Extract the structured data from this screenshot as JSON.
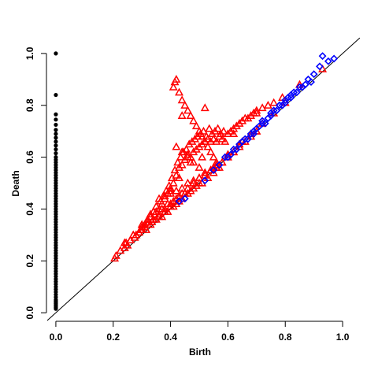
{
  "chart_data": {
    "type": "scatter",
    "title": "",
    "xlabel": "Birth",
    "ylabel": "Death",
    "xlim": [
      -0.03,
      1.03
    ],
    "ylim": [
      -0.03,
      1.03
    ],
    "xticks": [
      "0.0",
      "0.2",
      "0.4",
      "0.6",
      "0.8",
      "1.0"
    ],
    "yticks": [
      "0.0",
      "0.2",
      "0.4",
      "0.6",
      "0.8",
      "1.0"
    ],
    "grid": false,
    "legend": "none",
    "reference_line": {
      "from": [
        -0.03,
        -0.03
      ],
      "to": [
        1.06,
        1.06
      ]
    },
    "series": [
      {
        "marker": "filled-circle",
        "color": "#000000",
        "x": [
          0,
          0,
          0,
          0,
          0,
          0,
          0,
          0,
          0,
          0,
          0,
          0,
          0,
          0,
          0,
          0,
          0,
          0,
          0,
          0,
          0,
          0,
          0,
          0,
          0,
          0,
          0,
          0,
          0,
          0,
          0,
          0,
          0,
          0,
          0,
          0,
          0,
          0,
          0,
          0,
          0,
          0,
          0,
          0,
          0,
          0,
          0,
          0,
          0,
          0,
          0,
          0,
          0,
          0,
          0,
          0,
          0,
          0,
          0,
          0,
          0,
          0,
          0,
          0,
          0,
          0,
          0,
          0,
          0,
          0,
          0,
          0,
          0,
          0,
          0
        ],
        "y": [
          1.0,
          0.84,
          0.765,
          0.745,
          0.725,
          0.705,
          0.69,
          0.675,
          0.66,
          0.645,
          0.63,
          0.615,
          0.6,
          0.59,
          0.58,
          0.57,
          0.56,
          0.55,
          0.54,
          0.53,
          0.52,
          0.51,
          0.5,
          0.49,
          0.48,
          0.47,
          0.46,
          0.45,
          0.44,
          0.43,
          0.42,
          0.41,
          0.4,
          0.39,
          0.38,
          0.37,
          0.36,
          0.35,
          0.34,
          0.33,
          0.32,
          0.31,
          0.3,
          0.29,
          0.28,
          0.27,
          0.26,
          0.25,
          0.24,
          0.23,
          0.22,
          0.21,
          0.2,
          0.19,
          0.18,
          0.17,
          0.16,
          0.15,
          0.14,
          0.13,
          0.12,
          0.11,
          0.1,
          0.09,
          0.08,
          0.07,
          0.06,
          0.05,
          0.045,
          0.04,
          0.035,
          0.03,
          0.025,
          0.02,
          0.015
        ]
      },
      {
        "marker": "open-triangle",
        "color": "#ff0000",
        "x": [
          0.205,
          0.225,
          0.24,
          0.245,
          0.26,
          0.27,
          0.275,
          0.29,
          0.295,
          0.3,
          0.31,
          0.315,
          0.32,
          0.33,
          0.335,
          0.34,
          0.345,
          0.35,
          0.36,
          0.365,
          0.37,
          0.375,
          0.38,
          0.385,
          0.39,
          0.395,
          0.4,
          0.405,
          0.41,
          0.415,
          0.42,
          0.425,
          0.43,
          0.435,
          0.44,
          0.445,
          0.45,
          0.455,
          0.46,
          0.465,
          0.47,
          0.475,
          0.48,
          0.485,
          0.49,
          0.495,
          0.5,
          0.505,
          0.51,
          0.515,
          0.52,
          0.525,
          0.53,
          0.535,
          0.54,
          0.545,
          0.55,
          0.555,
          0.56,
          0.565,
          0.57,
          0.575,
          0.58,
          0.585,
          0.59,
          0.6,
          0.61,
          0.62,
          0.63,
          0.64,
          0.65,
          0.66,
          0.67,
          0.68,
          0.69,
          0.7,
          0.72,
          0.74,
          0.76,
          0.79,
          0.41,
          0.415,
          0.42,
          0.43,
          0.44,
          0.45,
          0.46,
          0.47,
          0.48,
          0.49,
          0.5,
          0.51,
          0.52,
          0.53,
          0.54,
          0.55,
          0.56,
          0.42,
          0.44,
          0.46,
          0.48,
          0.5,
          0.52,
          0.54,
          0.56,
          0.58,
          0.6,
          0.62,
          0.64,
          0.66,
          0.68,
          0.7,
          0.36,
          0.38,
          0.4,
          0.42,
          0.44,
          0.46,
          0.48,
          0.5,
          0.52,
          0.54,
          0.56,
          0.58,
          0.6,
          0.62,
          0.64,
          0.33,
          0.35,
          0.37,
          0.39,
          0.41,
          0.43,
          0.45,
          0.47,
          0.49,
          0.51,
          0.53,
          0.55,
          0.57,
          0.3,
          0.32,
          0.34,
          0.36,
          0.38,
          0.4,
          0.42,
          0.44,
          0.46,
          0.48,
          0.5,
          0.27,
          0.29,
          0.31,
          0.33,
          0.35,
          0.37,
          0.39,
          0.41,
          0.43,
          0.25,
          0.28,
          0.32,
          0.36,
          0.4,
          0.44,
          0.48,
          0.52,
          0.56,
          0.6,
          0.64,
          0.68,
          0.72,
          0.76,
          0.8,
          0.85,
          0.93,
          0.24,
          0.26,
          0.28,
          0.3,
          0.34,
          0.38,
          0.42,
          0.46,
          0.5,
          0.55,
          0.6,
          0.65,
          0.7,
          0.21,
          0.4,
          0.43,
          0.47,
          0.51,
          0.44,
          0.52,
          0.62,
          0.7
        ],
        "y": [
          0.21,
          0.24,
          0.25,
          0.27,
          0.28,
          0.3,
          0.29,
          0.31,
          0.32,
          0.33,
          0.34,
          0.32,
          0.36,
          0.37,
          0.35,
          0.39,
          0.38,
          0.41,
          0.4,
          0.43,
          0.42,
          0.45,
          0.44,
          0.47,
          0.46,
          0.49,
          0.48,
          0.52,
          0.5,
          0.55,
          0.53,
          0.58,
          0.56,
          0.6,
          0.57,
          0.62,
          0.59,
          0.63,
          0.61,
          0.65,
          0.6,
          0.66,
          0.62,
          0.67,
          0.63,
          0.68,
          0.64,
          0.69,
          0.65,
          0.7,
          0.66,
          0.68,
          0.67,
          0.71,
          0.66,
          0.69,
          0.67,
          0.7,
          0.66,
          0.71,
          0.68,
          0.69,
          0.67,
          0.7,
          0.66,
          0.69,
          0.7,
          0.71,
          0.72,
          0.73,
          0.74,
          0.75,
          0.75,
          0.76,
          0.77,
          0.78,
          0.79,
          0.8,
          0.81,
          0.83,
          0.87,
          0.89,
          0.9,
          0.85,
          0.82,
          0.8,
          0.78,
          0.76,
          0.74,
          0.72,
          0.7,
          0.68,
          0.66,
          0.64,
          0.62,
          0.6,
          0.58,
          0.64,
          0.62,
          0.6,
          0.58,
          0.56,
          0.54,
          0.55,
          0.56,
          0.58,
          0.6,
          0.62,
          0.64,
          0.66,
          0.68,
          0.7,
          0.44,
          0.45,
          0.46,
          0.47,
          0.48,
          0.5,
          0.51,
          0.52,
          0.53,
          0.55,
          0.56,
          0.58,
          0.6,
          0.62,
          0.64,
          0.38,
          0.39,
          0.4,
          0.42,
          0.43,
          0.45,
          0.46,
          0.47,
          0.49,
          0.5,
          0.52,
          0.54,
          0.56,
          0.34,
          0.35,
          0.36,
          0.37,
          0.39,
          0.41,
          0.42,
          0.44,
          0.46,
          0.48,
          0.5,
          0.3,
          0.31,
          0.33,
          0.34,
          0.36,
          0.37,
          0.39,
          0.41,
          0.43,
          0.26,
          0.3,
          0.34,
          0.38,
          0.42,
          0.46,
          0.5,
          0.54,
          0.57,
          0.61,
          0.65,
          0.69,
          0.73,
          0.77,
          0.81,
          0.88,
          0.94,
          0.27,
          0.28,
          0.3,
          0.32,
          0.36,
          0.4,
          0.44,
          0.48,
          0.52,
          0.56,
          0.61,
          0.66,
          0.7,
          0.22,
          0.47,
          0.52,
          0.58,
          0.6,
          0.76,
          0.79,
          0.69,
          0.77
        ]
      },
      {
        "marker": "open-diamond",
        "color": "#0000ff",
        "x": [
          0.43,
          0.45,
          0.52,
          0.55,
          0.57,
          0.59,
          0.6,
          0.62,
          0.63,
          0.64,
          0.65,
          0.66,
          0.67,
          0.68,
          0.69,
          0.7,
          0.71,
          0.72,
          0.73,
          0.74,
          0.75,
          0.76,
          0.77,
          0.78,
          0.79,
          0.8,
          0.81,
          0.82,
          0.83,
          0.85,
          0.87,
          0.88,
          0.9,
          0.92,
          0.93,
          0.95,
          0.97,
          0.61,
          0.65,
          0.69,
          0.72,
          0.75,
          0.78,
          0.8,
          0.82,
          0.84,
          0.86,
          0.89
        ],
        "y": [
          0.43,
          0.44,
          0.51,
          0.55,
          0.57,
          0.6,
          0.6,
          0.63,
          0.63,
          0.65,
          0.66,
          0.67,
          0.67,
          0.69,
          0.69,
          0.71,
          0.72,
          0.73,
          0.73,
          0.75,
          0.76,
          0.78,
          0.78,
          0.8,
          0.8,
          0.82,
          0.83,
          0.84,
          0.85,
          0.87,
          0.88,
          0.9,
          0.92,
          0.95,
          0.99,
          0.97,
          0.98,
          0.61,
          0.66,
          0.7,
          0.74,
          0.77,
          0.8,
          0.81,
          0.83,
          0.85,
          0.87,
          0.89
        ]
      }
    ]
  }
}
